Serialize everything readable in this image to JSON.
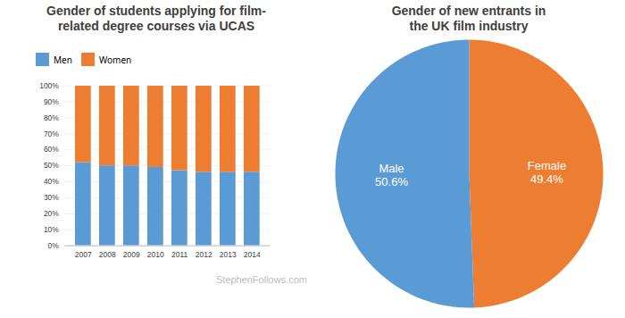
{
  "chart_data": [
    {
      "type": "bar",
      "title": "Gender of students applying for film-\nrelated degree courses via UCAS",
      "categories": [
        "2007",
        "2008",
        "2009",
        "2010",
        "2011",
        "2012",
        "2013",
        "2014"
      ],
      "series": [
        {
          "name": "Men",
          "color": "#5B9BD5",
          "values": [
            52,
            50,
            50,
            49,
            47,
            46,
            46,
            46
          ]
        },
        {
          "name": "Women",
          "color": "#ED7D31",
          "values": [
            48,
            50,
            50,
            51,
            53,
            54,
            54,
            54
          ]
        }
      ],
      "stacked": true,
      "ylim": [
        0,
        100
      ],
      "yticks": [
        {
          "value": 0,
          "label": "0%"
        },
        {
          "value": 10,
          "label": "10%"
        },
        {
          "value": 20,
          "label": "20%"
        },
        {
          "value": 30,
          "label": "30%"
        },
        {
          "value": 40,
          "label": "40%"
        },
        {
          "value": 50,
          "label": "50%"
        },
        {
          "value": 60,
          "label": "60%"
        },
        {
          "value": 70,
          "label": "70%"
        },
        {
          "value": 80,
          "label": "80%"
        },
        {
          "value": 90,
          "label": "90%"
        },
        {
          "value": 100,
          "label": "100%"
        }
      ],
      "grid": true,
      "legend": "top",
      "annotations": [
        "StephenFollows.com"
      ]
    },
    {
      "type": "pie",
      "title": "Gender of new entrants in\nthe UK film industry",
      "categories": [
        "Female",
        "Male"
      ],
      "values": [
        49.4,
        50.6
      ],
      "value_labels": [
        "49.4%",
        "50.6%"
      ],
      "colors": [
        "#ED7D31",
        "#5B9BD5"
      ],
      "data_labels": true
    }
  ]
}
